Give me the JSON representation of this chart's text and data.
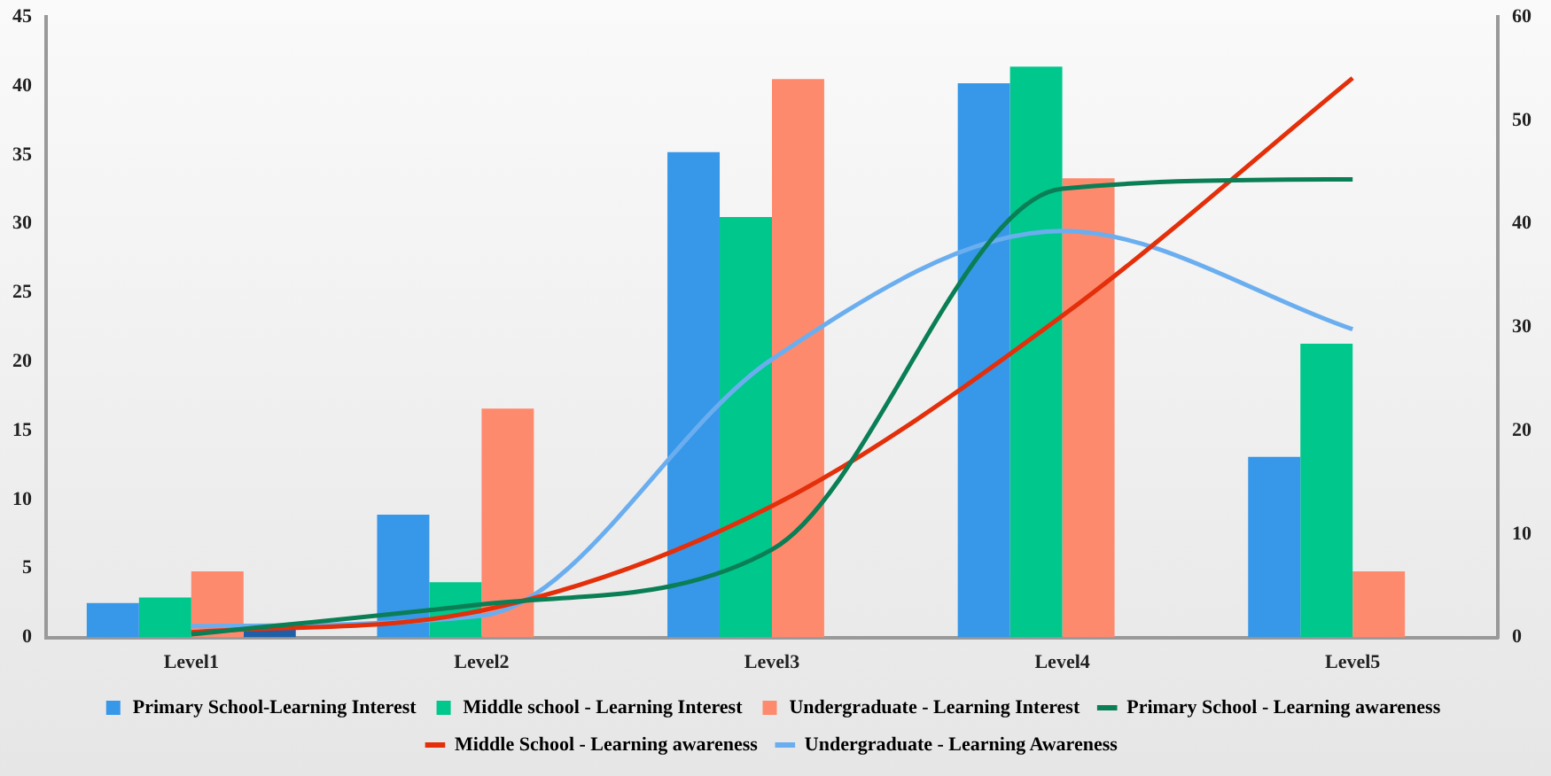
{
  "chart_data": {
    "type": "bar",
    "categories": [
      "Level1",
      "Level2",
      "Level3",
      "Level4",
      "Level5"
    ],
    "series": [
      {
        "name": "Primary School-Learning Interest",
        "color": "#3797e8",
        "values": [
          2.5,
          8.9,
          35.2,
          40.2,
          13.1
        ]
      },
      {
        "name": "Middle school - Learning Interest",
        "color": "#00c78c",
        "values": [
          2.9,
          4.0,
          30.5,
          41.4,
          21.3
        ]
      },
      {
        "name": "Undergraduate - Learning Interest",
        "color": "#fe8a6e",
        "values": [
          4.8,
          16.6,
          40.5,
          33.3,
          4.8
        ]
      },
      {
        "color": "#1f5fa8",
        "values": [
          0.8,
          null,
          null,
          null,
          null
        ]
      },
      {
        "name": "Primary School - Learning awareness",
        "type": "line",
        "axis": "y2",
        "color": "#0a7e55",
        "values": [
          0.3,
          3.2,
          8.5,
          43.4,
          44.3
        ]
      },
      {
        "name": "Middle School - Learning awareness",
        "type": "line",
        "axis": "y2",
        "color": "#e32f0a",
        "values": [
          0.5,
          2.6,
          12.7,
          31.1,
          54.1
        ]
      },
      {
        "name": "Undergraduate - Learning Awareness",
        "type": "line",
        "axis": "y2",
        "color": "#6aaef0",
        "values": [
          1.1,
          2.1,
          26.9,
          39.3,
          29.8
        ]
      }
    ],
    "ylim": [
      0,
      45
    ],
    "yticks": [
      0,
      5,
      10,
      15,
      20,
      25,
      30,
      35,
      40,
      45
    ],
    "y2lim": [
      0,
      60
    ],
    "y2ticks": [
      0,
      10,
      20,
      30,
      40,
      50,
      60
    ],
    "grid": false,
    "legend": "bottom",
    "marker": "none",
    "line_style": "solid"
  }
}
